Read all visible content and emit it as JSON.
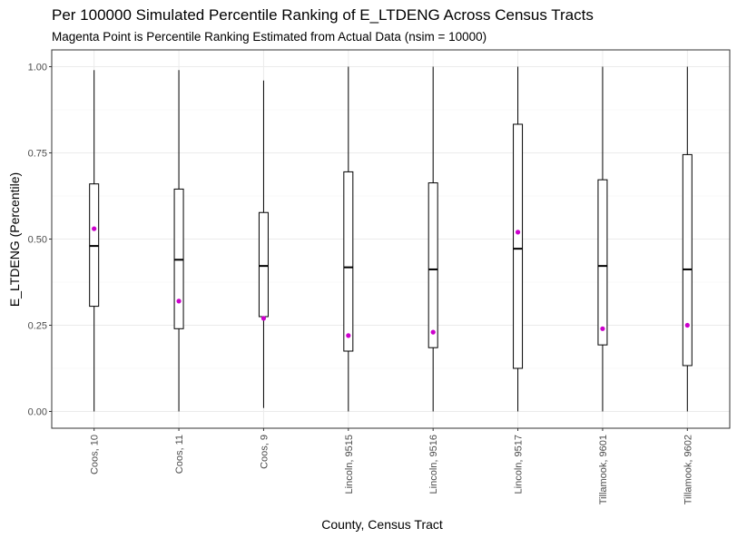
{
  "chart_data": {
    "type": "boxplot",
    "title": "Per 100000 Simulated Percentile Ranking of E_LTDENG Across Census Tracts",
    "subtitle": "Magenta Point is Percentile Ranking Estimated from Actual Data (nsim = 10000)",
    "xlabel": "County, Census Tract",
    "ylabel": "E_LTDENG (Percentile)",
    "ylim": [
      -0.05,
      1.05
    ],
    "y_ticks": [
      0.0,
      0.25,
      0.5,
      0.75,
      1.0
    ],
    "y_tick_labels": [
      "0.00",
      "0.25",
      "0.50",
      "0.75",
      "1.00"
    ],
    "grid": true,
    "colors": {
      "box": "#000000",
      "point": "#cc00cc",
      "grid_major": "#ebebeb",
      "grid_minor": "#f5f5f5",
      "panel_border": "#333333"
    },
    "categories": [
      "Coos, 10",
      "Coos, 11",
      "Coos, 9",
      "Lincoln, 9515",
      "Lincoln, 9516",
      "Lincoln, 9517",
      "Tillamook, 9601",
      "Tillamook, 9602"
    ],
    "boxes": [
      {
        "min": 0.0,
        "q1": 0.305,
        "median": 0.48,
        "q3": 0.66,
        "max": 0.99
      },
      {
        "min": 0.0,
        "q1": 0.24,
        "median": 0.44,
        "q3": 0.645,
        "max": 0.99
      },
      {
        "min": 0.01,
        "q1": 0.275,
        "median": 0.422,
        "q3": 0.577,
        "max": 0.96
      },
      {
        "min": 0.0,
        "q1": 0.175,
        "median": 0.418,
        "q3": 0.695,
        "max": 1.0
      },
      {
        "min": 0.0,
        "q1": 0.185,
        "median": 0.412,
        "q3": 0.663,
        "max": 1.0
      },
      {
        "min": 0.0,
        "q1": 0.125,
        "median": 0.472,
        "q3": 0.833,
        "max": 1.0
      },
      {
        "min": 0.0,
        "q1": 0.193,
        "median": 0.422,
        "q3": 0.672,
        "max": 1.0
      },
      {
        "min": 0.0,
        "q1": 0.133,
        "median": 0.412,
        "q3": 0.745,
        "max": 1.0
      }
    ],
    "actual_points": [
      0.53,
      0.32,
      0.27,
      0.22,
      0.23,
      0.52,
      0.24,
      0.25
    ]
  }
}
